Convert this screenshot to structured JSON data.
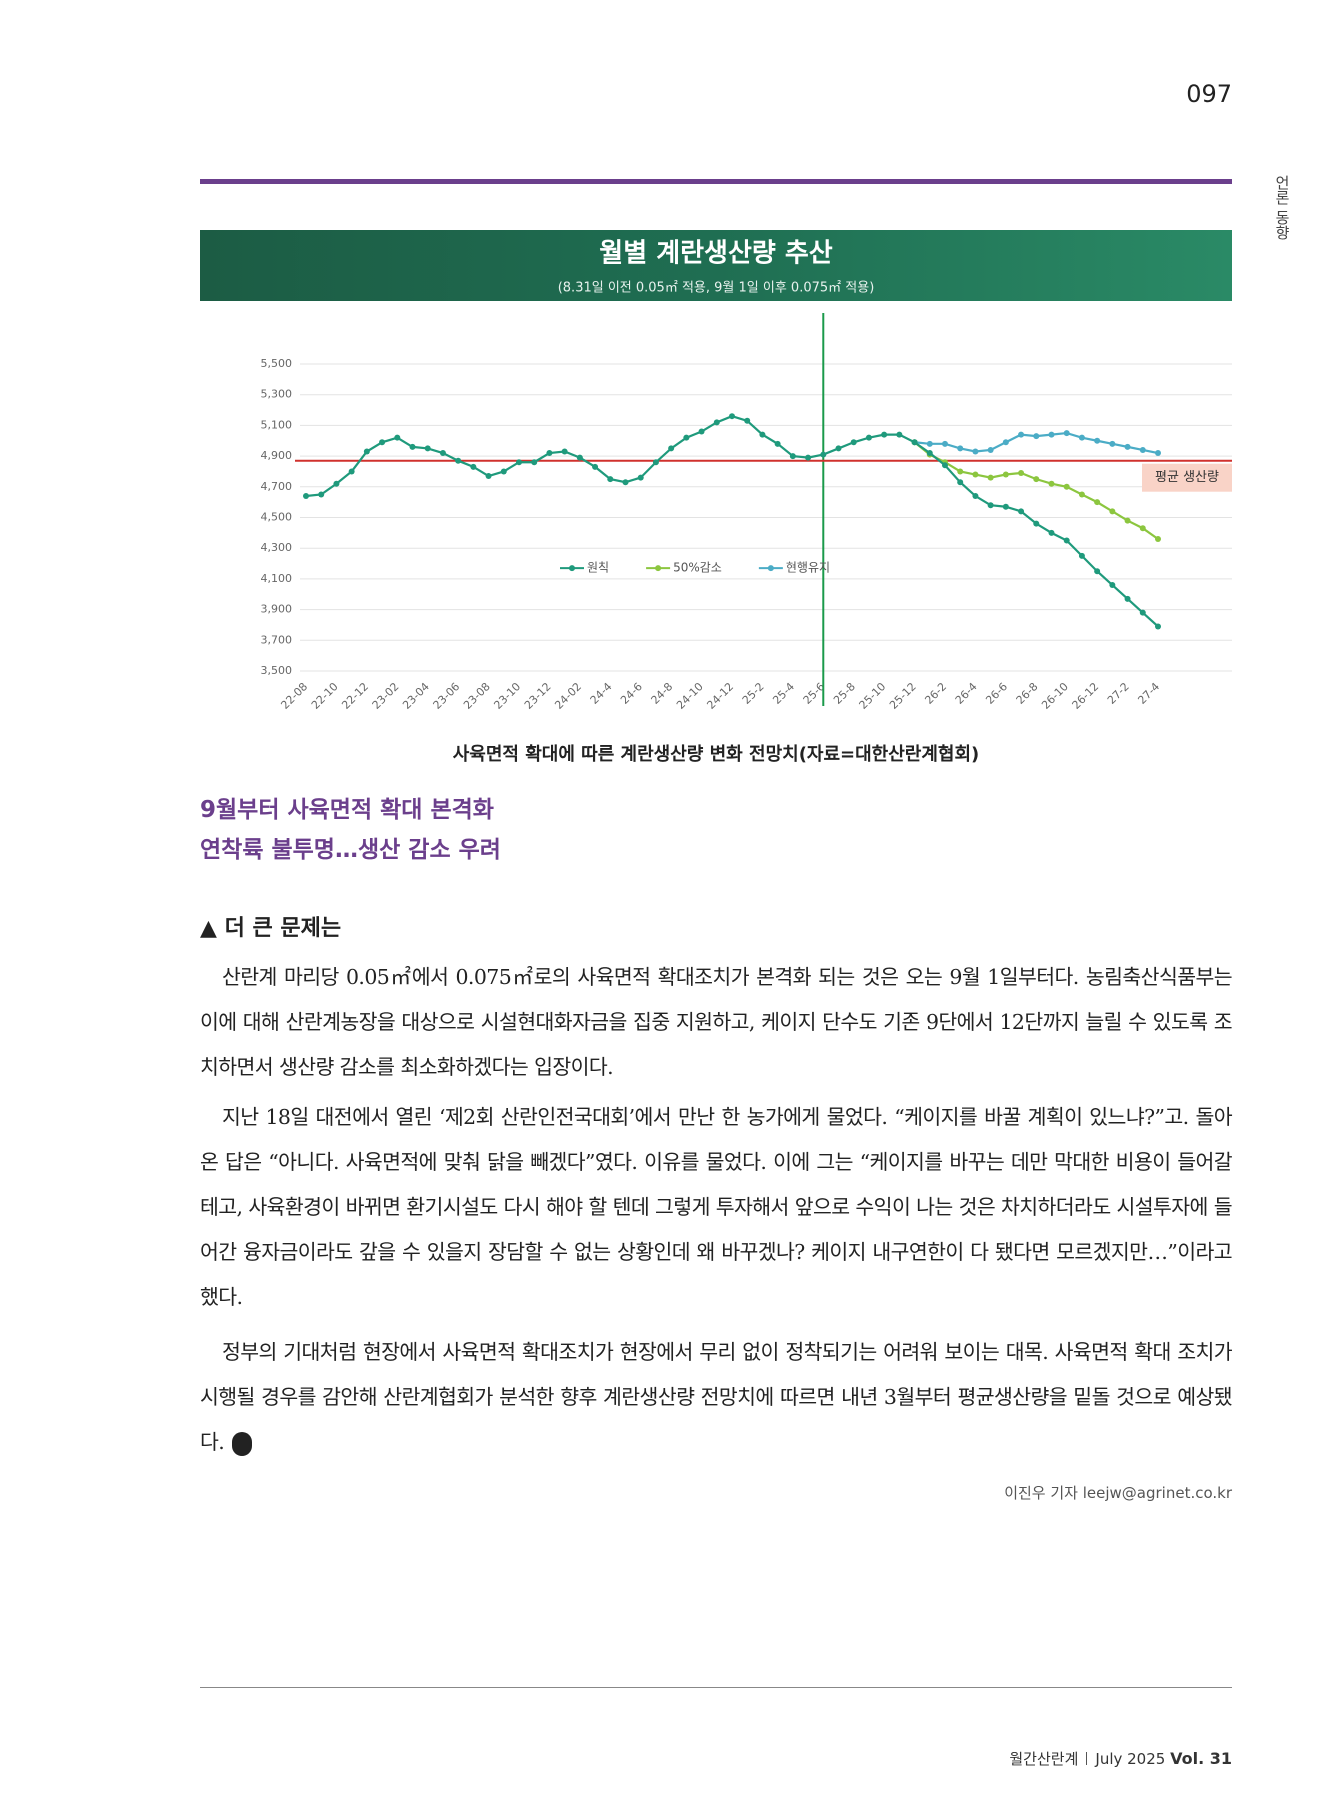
{
  "page_number": "097",
  "section": "언론 동향",
  "chart_data": {
    "type": "line",
    "title": "월별 계란생산량 추산",
    "subtitle": "(8.31일 이전 0.05㎡ 적용, 9월 1일 이후 0.075㎡ 적용)",
    "categories": [
      "22-08",
      null,
      "22-10",
      null,
      "22-12",
      null,
      "23-02",
      null,
      "23-04",
      null,
      "23-06",
      null,
      "23-08",
      null,
      "23-10",
      null,
      "23-12",
      null,
      "24-02",
      null,
      "24-4",
      null,
      "24-6",
      null,
      "24-8",
      null,
      "24-10",
      null,
      "24-12",
      null,
      "25-2",
      null,
      "25-4",
      null,
      "25-6",
      null,
      "25-8",
      null,
      "25-10",
      null,
      "25-12",
      null,
      "26-2",
      null,
      "26-4",
      null,
      "26-6",
      null,
      "26-8",
      null,
      "26-10",
      null,
      "26-12",
      null,
      "27-2",
      null,
      "27-4"
    ],
    "series": [
      {
        "name": "원칙",
        "color": "#1f9a7c",
        "values": [
          4640,
          4650,
          4720,
          4800,
          4930,
          4990,
          5020,
          4960,
          4950,
          4920,
          4870,
          4830,
          4770,
          4800,
          4860,
          4860,
          4920,
          4930,
          4890,
          4830,
          4750,
          4730,
          4760,
          4860,
          4950,
          5020,
          5060,
          5120,
          5160,
          5130,
          5040,
          4980,
          4900,
          4890,
          4910,
          4950,
          4990,
          5020,
          5040,
          5040,
          4990,
          4920,
          4840,
          4730,
          4640,
          4580,
          4570,
          4540,
          4460,
          4400,
          4350,
          4250,
          4150,
          4060,
          3970,
          3880,
          3790
        ]
      },
      {
        "name": "50%감소",
        "color": "#8cc63f",
        "values": [
          null,
          null,
          null,
          null,
          null,
          null,
          null,
          null,
          null,
          null,
          null,
          null,
          null,
          null,
          null,
          null,
          null,
          null,
          null,
          null,
          null,
          null,
          null,
          null,
          null,
          null,
          null,
          null,
          null,
          null,
          null,
          null,
          null,
          null,
          null,
          null,
          null,
          null,
          null,
          null,
          4990,
          4910,
          4860,
          4800,
          4780,
          4760,
          4780,
          4790,
          4750,
          4720,
          4700,
          4650,
          4600,
          4540,
          4480,
          4430,
          4360
        ]
      },
      {
        "name": "현행유지",
        "color": "#4bacc6",
        "values": [
          null,
          null,
          null,
          null,
          null,
          null,
          null,
          null,
          null,
          null,
          null,
          null,
          null,
          null,
          null,
          null,
          null,
          null,
          null,
          null,
          null,
          null,
          null,
          null,
          null,
          null,
          null,
          null,
          null,
          null,
          null,
          null,
          null,
          null,
          null,
          null,
          null,
          null,
          null,
          null,
          4990,
          4980,
          4980,
          4950,
          4930,
          4940,
          4990,
          5040,
          5030,
          5040,
          5050,
          5020,
          5000,
          4980,
          4960,
          4940,
          4920
        ]
      }
    ],
    "ylim": [
      3500,
      5500
    ],
    "yticks": [
      {
        "value": 3500,
        "label": "3,500"
      },
      {
        "value": 3700,
        "label": "3,700"
      },
      {
        "value": 3900,
        "label": "3,900"
      },
      {
        "value": 4100,
        "label": "4,100"
      },
      {
        "value": 4300,
        "label": "4,300"
      },
      {
        "value": 4500,
        "label": "4,500"
      },
      {
        "value": 4700,
        "label": "4,700"
      },
      {
        "value": 4900,
        "label": "4,900"
      },
      {
        "value": 5100,
        "label": "5,100"
      },
      {
        "value": 5300,
        "label": "5,300"
      },
      {
        "value": 5500,
        "label": "5,500"
      }
    ],
    "grid": true,
    "legend": "center",
    "average": {
      "label": "평균 생산량",
      "value": 4870,
      "color": "#d0312d"
    },
    "vline": "25-6"
  },
  "caption": "사육면적 확대에 따른 계란생산량 변화 전망치(자료=대한산란계협회)",
  "headline": [
    "9월부터 사육면적 확대 본격화",
    "연착륙 불투명…생산 감소 우려"
  ],
  "subhead": "▲ 더 큰 문제는",
  "paragraphs": [
    "산란계 마리당 0.05㎡에서 0.075㎡로의 사육면적 확대조치가 본격화 되는 것은 오는 9월 1일부터다. 농림축산식품부는 이에 대해 산란계농장을 대상으로 시설현대화자금을 집중 지원하고, 케이지 단수도 기존 9단에서 12단까지 늘릴 수 있도록 조치하면서 생산량 감소를 최소화하겠다는 입장이다.",
    "지난 18일 대전에서 열린 ‘제2회 산란인전국대회’에서 만난 한 농가에게 물었다. “케이지를 바꿀 계획이 있느냐?”고. 돌아온 답은 “아니다. 사육면적에 맞춰 닭을 빼겠다”였다. 이유를 물었다. 이에 그는 “케이지를 바꾸는 데만 막대한 비용이 들어갈 테고, 사육환경이 바뀌면 환기시설도 다시 해야 할 텐데 그렇게 투자해서 앞으로 수익이 나는 것은 차치하더라도 시설투자에 들어간 융자금이라도 갚을 수 있을지 장담할 수 없는 상황인데 왜 바꾸겠나? 케이지 내구연한이 다 됐다면 모르겠지만…”이라고 했다.",
    "정부의 기대처럼 현장에서 사육면적 확대조치가 현장에서 무리 없이 정착되기는 어려워 보이는 대목. 사육면적 확대 조치가 시행될 경우를 감안해 산란계협회가 분석한 향후 계란생산량 전망치에 따르면 내년 3월부터 평균생산량을 밑돌 것으로 예상됐다."
  ],
  "byline": "이진우 기자 leejw@agrinet.co.kr",
  "footer": {
    "magazine": "월간산란계",
    "issue": "July 2025",
    "vol": "Vol. 31"
  }
}
